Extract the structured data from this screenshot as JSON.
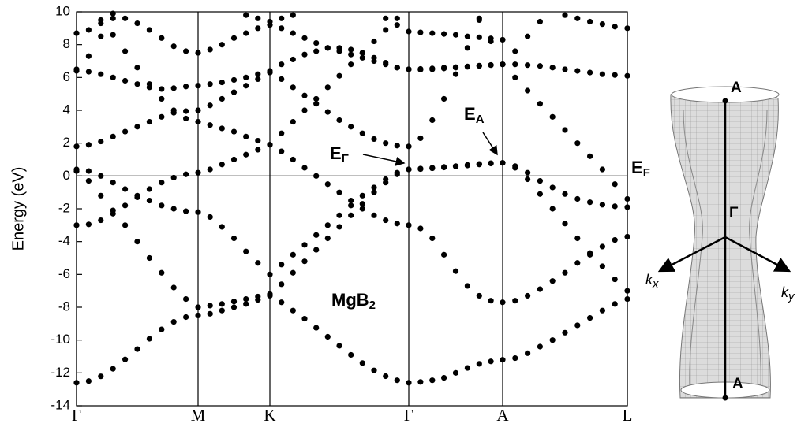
{
  "chart_data": {
    "type": "scatter",
    "ylabel": "Energy (eV)",
    "color": "#000000",
    "xlim": [
      0,
      6.98
    ],
    "ylim": [
      -14,
      10
    ],
    "yticks": [
      10,
      8,
      6,
      4,
      2,
      0,
      -2,
      -4,
      -6,
      -8,
      -10,
      -12,
      -14
    ],
    "xticks": [
      {
        "value": 0,
        "label": "Γ"
      },
      {
        "value": 1.54,
        "label": "M"
      },
      {
        "value": 2.45,
        "label": "K"
      },
      {
        "value": 4.21,
        "label": "Γ"
      },
      {
        "value": 5.4,
        "label": "A"
      },
      {
        "value": 6.98,
        "label": "L"
      }
    ],
    "grid": true,
    "fermi_level": 0,
    "x": [
      0,
      0.154,
      0.308,
      0.462,
      0.616,
      0.77,
      0.924,
      1.078,
      1.232,
      1.386,
      1.54,
      1.692,
      1.843,
      1.995,
      2.147,
      2.298,
      2.45,
      2.597,
      2.743,
      2.89,
      3.037,
      3.183,
      3.33,
      3.477,
      3.623,
      3.77,
      3.917,
      4.063,
      4.21,
      4.359,
      4.508,
      4.656,
      4.805,
      4.954,
      5.103,
      5.251,
      5.4,
      5.558,
      5.716,
      5.874,
      6.032,
      6.19,
      6.348,
      6.506,
      6.664,
      6.822,
      6.98
    ],
    "series": [
      {
        "color": "#000000",
        "values": [
          -12.6,
          -12.5,
          -12.21,
          -11.75,
          -11.18,
          -10.55,
          -9.92,
          -9.35,
          -8.89,
          -8.6,
          -8.5,
          -8.4,
          -8.2,
          -8.0,
          -7.8,
          -7.55,
          -7.3,
          -7.7,
          -8.2,
          -8.7,
          -9.25,
          -9.8,
          -10.35,
          -10.9,
          -11.4,
          -11.85,
          -12.2,
          -12.45,
          -12.6,
          -12.55,
          -12.45,
          -12.3,
          -12.0,
          -11.7,
          -11.45,
          -11.3,
          -11.2,
          -11.1,
          -10.8,
          -10.4,
          -10.0,
          -9.55,
          -9.1,
          -8.65,
          -8.2,
          -7.8,
          -7.5
        ]
      },
      {
        "color": "#000000",
        "values": [
          0.3,
          -0.3,
          -1.2,
          -2.1,
          -3.0,
          -4.0,
          -5.0,
          -5.9,
          -6.8,
          -7.5,
          -8.0,
          -7.9,
          -7.8,
          -7.65,
          -7.5,
          -7.35,
          -7.2,
          -6.6,
          -5.9,
          -5.2,
          -4.5,
          -3.8,
          -3.1,
          -2.4,
          -1.7,
          -1.0,
          -0.4,
          0.1,
          0.4,
          0.45,
          0.5,
          0.55,
          0.6,
          0.67,
          0.73,
          0.78,
          0.8,
          0.5,
          -0.2,
          -1.1,
          -2.0,
          -2.9,
          -3.8,
          -4.7,
          -5.5,
          -6.3,
          -7.0
        ]
      },
      {
        "color": "#000000",
        "values": [
          0.4,
          0.3,
          0.0,
          -0.4,
          -0.8,
          -1.2,
          -1.5,
          -1.8,
          -2.0,
          -2.15,
          -2.2,
          -2.5,
          -3.1,
          -3.8,
          -4.6,
          -5.3,
          -6.0,
          -5.4,
          -4.8,
          -4.2,
          -3.6,
          -3.0,
          -2.4,
          -1.8,
          -1.2,
          -0.7,
          -0.2,
          0.2,
          0.4,
          0.42,
          0.47,
          0.52,
          0.58,
          0.64,
          0.7,
          0.76,
          0.8,
          0.6,
          0.2,
          -0.3,
          -0.7,
          -1.1,
          -1.4,
          -1.6,
          -1.75,
          -1.85,
          -1.9
        ]
      },
      {
        "color": "#000000",
        "values": [
          -3.0,
          -2.95,
          -2.7,
          -2.3,
          -1.8,
          -1.3,
          -0.8,
          -0.4,
          -0.1,
          0.1,
          0.2,
          0.4,
          0.7,
          1.0,
          1.3,
          1.6,
          1.9,
          1.5,
          1.0,
          0.5,
          0.0,
          -0.5,
          -1.0,
          -1.5,
          -2.0,
          -2.4,
          -2.7,
          -2.9,
          -3.0,
          -3.2,
          -3.8,
          -4.8,
          -5.8,
          -6.7,
          -7.3,
          -7.6,
          -7.7,
          -7.6,
          -7.3,
          -6.9,
          -6.4,
          -5.9,
          -5.3,
          -4.8,
          -4.3,
          -3.9,
          -3.7
        ]
      },
      {
        "color": "#000000",
        "values": [
          1.8,
          1.9,
          2.1,
          2.4,
          2.7,
          3.0,
          3.3,
          3.6,
          3.85,
          3.95,
          4.0,
          4.3,
          4.7,
          5.1,
          5.5,
          5.9,
          6.3,
          5.9,
          5.4,
          4.9,
          4.4,
          3.9,
          3.4,
          3.0,
          2.6,
          2.25,
          2.0,
          1.85,
          1.8,
          2.3,
          3.4,
          4.7,
          6.2,
          7.8,
          9.5,
          null,
          null,
          null,
          null,
          null,
          null,
          null,
          null,
          null,
          null,
          null,
          null
        ]
      },
      {
        "color": "#000000",
        "values": [
          6.4,
          6.35,
          6.2,
          6.0,
          5.8,
          5.6,
          5.4,
          5.3,
          5.35,
          5.45,
          5.5,
          5.6,
          5.7,
          5.85,
          6.0,
          6.2,
          6.4,
          6.8,
          7.1,
          7.4,
          7.6,
          7.8,
          7.8,
          7.7,
          7.5,
          7.2,
          6.9,
          6.6,
          6.5,
          6.52,
          6.55,
          6.6,
          6.63,
          6.67,
          6.72,
          6.76,
          6.8,
          6.8,
          6.75,
          6.7,
          6.6,
          6.5,
          6.4,
          6.3,
          6.2,
          6.15,
          6.1
        ]
      },
      {
        "color": "#000000",
        "values": [
          8.7,
          8.9,
          9.3,
          9.6,
          9.6,
          9.3,
          8.9,
          8.4,
          7.9,
          7.6,
          7.5,
          7.7,
          8.0,
          8.4,
          8.7,
          9.0,
          9.2,
          9.0,
          8.7,
          8.4,
          8.1,
          7.8,
          7.6,
          7.4,
          7.2,
          7.0,
          6.8,
          6.6,
          6.5,
          6.48,
          6.5,
          6.55,
          6.6,
          6.65,
          6.7,
          6.75,
          6.8,
          7.6,
          8.5,
          9.4,
          null,
          9.8,
          9.6,
          9.4,
          9.25,
          9.1,
          9.0
        ]
      },
      {
        "color": "#000000",
        "values": [
          6.5,
          7.3,
          8.5,
          9.9,
          null,
          null,
          null,
          null,
          null,
          null,
          null,
          null,
          null,
          null,
          9.8,
          9.6,
          9.4,
          9.6,
          9.8,
          null,
          null,
          null,
          null,
          null,
          null,
          null,
          null,
          null,
          null,
          null,
          null,
          null,
          null,
          null,
          9.6,
          8.2,
          6.8,
          6.0,
          5.2,
          4.4,
          3.6,
          2.8,
          2.0,
          1.2,
          0.4,
          -0.5,
          -1.4
        ]
      },
      {
        "color": "#000000",
        "values": [
          null,
          null,
          9.5,
          8.6,
          7.6,
          6.6,
          5.6,
          4.7,
          4.0,
          3.5,
          3.3,
          3.1,
          2.9,
          2.7,
          2.4,
          2.15,
          1.9,
          2.6,
          3.3,
          4.0,
          4.7,
          5.4,
          6.1,
          6.8,
          7.5,
          8.2,
          8.9,
          9.6,
          null,
          null,
          null,
          null,
          null,
          null,
          null,
          null,
          null,
          null,
          null,
          null,
          null,
          null,
          null,
          null,
          null,
          null,
          null
        ]
      },
      {
        "color": "#000000",
        "values": [
          null,
          null,
          null,
          null,
          null,
          null,
          null,
          null,
          null,
          null,
          null,
          null,
          null,
          null,
          null,
          null,
          null,
          null,
          null,
          null,
          null,
          null,
          null,
          null,
          null,
          null,
          9.6,
          9.2,
          8.8,
          8.75,
          8.7,
          8.65,
          8.6,
          8.5,
          8.45,
          8.38,
          8.3,
          null,
          null,
          null,
          null,
          null,
          null,
          null,
          null,
          null,
          null
        ]
      }
    ],
    "annotations": {
      "compound": {
        "text": "MgB",
        "subscript": "2"
      },
      "e_gamma": {
        "text": "E",
        "subscript": "Γ"
      },
      "e_a": {
        "text": "E",
        "subscript": "A"
      },
      "e_f": {
        "text": "E",
        "subscript": "F"
      }
    }
  },
  "inset": {
    "top_label": "A",
    "center_label": "Γ",
    "bottom_label": "A",
    "kx": {
      "text": "k",
      "subscript": "x"
    },
    "ky": {
      "text": "k",
      "subscript": "y"
    }
  }
}
